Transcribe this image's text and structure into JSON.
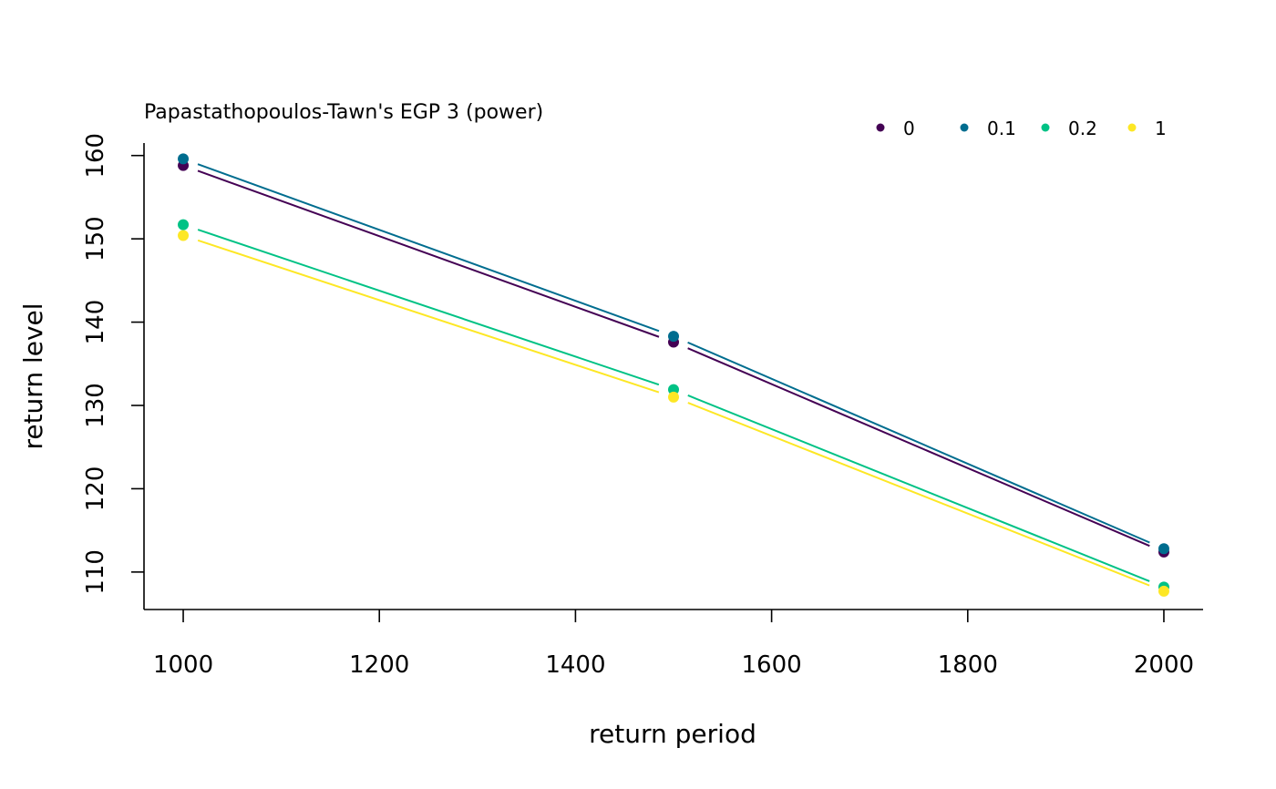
{
  "chart_data": {
    "type": "line",
    "title": "Papastathopoulos-Tawn's EGP 3 (power)",
    "xlabel": "return period",
    "ylabel": "return level",
    "x": [
      1000,
      1500,
      2000
    ],
    "xlim": [
      960,
      2040
    ],
    "ylim": [
      105.5,
      161.5
    ],
    "xticks": [
      1000,
      1200,
      1400,
      1600,
      1800,
      2000
    ],
    "yticks": [
      110,
      120,
      130,
      140,
      150,
      160
    ],
    "grid": false,
    "legend": "top-right",
    "series": [
      {
        "name": "0",
        "color": "#440154",
        "values": [
          158.8,
          137.6,
          112.4
        ]
      },
      {
        "name": "0.1",
        "color": "#006d8f",
        "values": [
          159.6,
          138.3,
          112.8
        ]
      },
      {
        "name": "0.2",
        "color": "#00c285",
        "values": [
          151.7,
          131.9,
          108.2
        ]
      },
      {
        "name": "1",
        "color": "#fde725",
        "values": [
          150.4,
          131.0,
          107.7
        ]
      }
    ]
  }
}
